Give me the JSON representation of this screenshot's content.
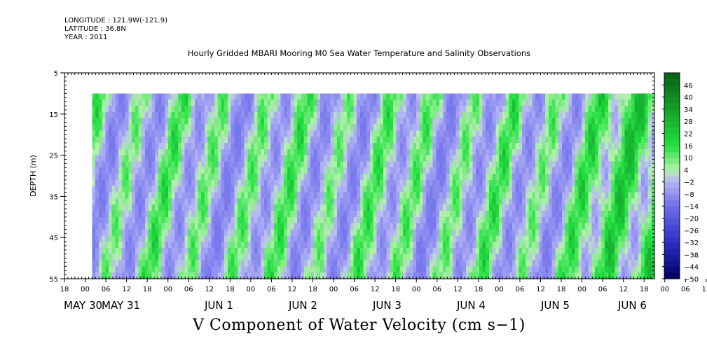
{
  "header": {
    "longitude": "LONGITUDE : 121.9W(-121.9)",
    "latitude": "LATITUDE : 36.8N",
    "year": "YEAR : 2011"
  },
  "chart_data": {
    "type": "heatmap",
    "title": "Hourly Gridded MBARI Mooring M0 Sea Water Temperature and Salinity Observations",
    "xlabel": "V Component of Water Velocity (cm s−1)",
    "ylabel": "DEPTH (m)",
    "ylim": [
      5,
      55
    ],
    "y_reversed": true,
    "y_ticks": [
      5,
      15,
      25,
      35,
      45,
      55
    ],
    "data_depth_range": [
      10,
      55
    ],
    "x_hour_ticks": [
      "18",
      "00",
      "06",
      "12",
      "18",
      "00",
      "06",
      "12",
      "18",
      "00",
      "06",
      "12",
      "18",
      "00",
      "06",
      "12",
      "18",
      "00",
      "06",
      "12",
      "18",
      "00",
      "06",
      "12",
      "18",
      "00",
      "06",
      "12",
      "18",
      "00",
      "06",
      "12",
      "18"
    ],
    "x_day_labels": [
      "MAY 30",
      "MAY 31",
      "JUN  1",
      "JUN  2",
      "JUN  3",
      "JUN  4",
      "JUN  5",
      "JUN  6"
    ],
    "x_range": [
      "2011-05-30T18:00",
      "2011-06-06T21:00"
    ],
    "data_time_range": [
      "2011-05-31T02:00",
      "2011-06-06T21:00"
    ],
    "colorbar_labels": [
      "46",
      "40",
      "34",
      "28",
      "22",
      "16",
      "10",
      "4",
      "-2",
      "-8",
      "-14",
      "-20",
      "-26",
      "-32",
      "-38",
      "-44",
      "-50"
    ],
    "colorbar_range": [
      -50,
      52
    ],
    "colors": {
      "strong_positive": "#0a7a1e",
      "positive": "#22e040",
      "weak_positive": "#a8f0a0",
      "weak_negative": "#b8b8f4",
      "negative": "#8c8cf0",
      "strong_negative": "#000066"
    },
    "grid": false,
    "legend": "colorbar-right"
  }
}
